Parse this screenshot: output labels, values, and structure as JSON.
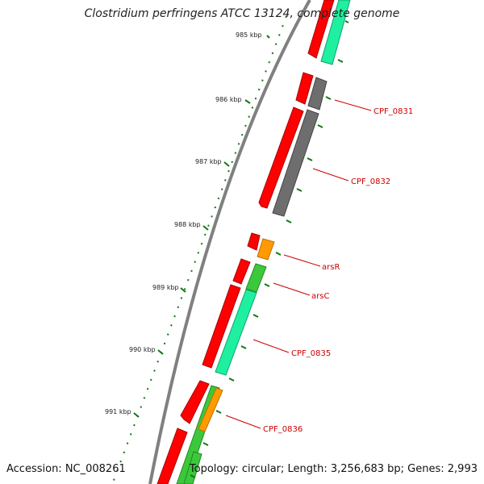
{
  "title": "Clostridium perfringens ATCC 13124, complete genome",
  "accession": "Accession: NC_008261",
  "topology": "Topology: circular; Length: 3,256,683 bp; Genes: 2,993",
  "scale_labels": [
    "985 kbp",
    "986 kbp",
    "987 kbp",
    "988 kbp",
    "989 kbp",
    "990 kbp",
    "991 kbp"
  ],
  "gene_labels": [
    "CPF_0831",
    "CPF_0832",
    "arsR",
    "arsC",
    "CPF_0835",
    "CPF_0836"
  ],
  "colors": {
    "backbone": "#808080",
    "forward_cds": "#ff0000",
    "reverse_gray": "#6e6e6e",
    "reverse_teal": "#1ef0a0",
    "reverse_green": "#3cc83c",
    "orange": "#ff9a00",
    "tick": "#117711",
    "label": "#cc0000"
  }
}
